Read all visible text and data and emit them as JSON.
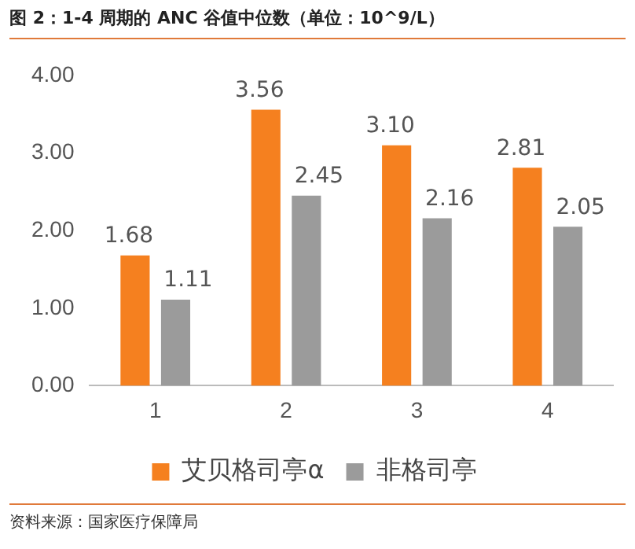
{
  "chart_data": {
    "type": "bar",
    "title": "图 2：1-4 周期的 ANC 谷值中位数（单位：10^9/L）",
    "categories": [
      "1",
      "2",
      "3",
      "4"
    ],
    "series": [
      {
        "name": "艾贝格司亭α",
        "color": "#f5801f",
        "values": [
          1.68,
          3.56,
          3.1,
          2.81
        ]
      },
      {
        "name": "非格司亭",
        "color": "#9b9b9b",
        "values": [
          1.11,
          2.45,
          2.16,
          2.05
        ]
      }
    ],
    "value_labels": [
      [
        "1.68",
        "3.56",
        "3.10",
        "2.81"
      ],
      [
        "1.11",
        "2.45",
        "2.16",
        "2.05"
      ]
    ],
    "ylim": [
      0,
      4
    ],
    "yticks": [
      {
        "value": 0,
        "label": "0.00"
      },
      {
        "value": 1,
        "label": "1.00"
      },
      {
        "value": 2,
        "label": "2.00"
      },
      {
        "value": 3,
        "label": "3.00"
      },
      {
        "value": 4,
        "label": "4.00"
      }
    ],
    "grid": false,
    "legend": "bottom",
    "annotations": [
      "资料来源：国家医疗保障局"
    ]
  }
}
